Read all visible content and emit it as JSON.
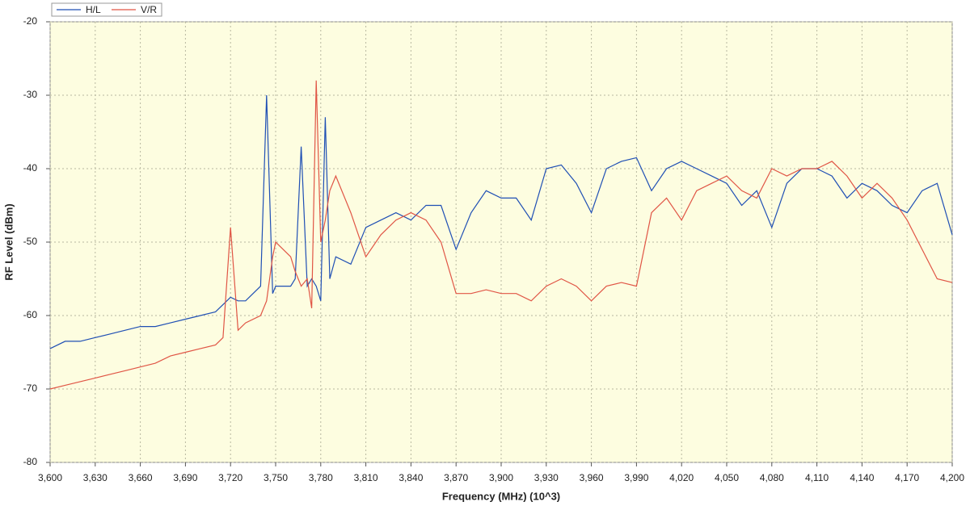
{
  "chart_data": {
    "type": "line",
    "x_label": "Frequency (MHz) (10^3)",
    "y_label": "RF Level (dBm)",
    "legend": "top-left",
    "grid": true,
    "xlim": [
      3600,
      4200
    ],
    "ylim": [
      -80,
      -20
    ],
    "yticks": [
      -20,
      -30,
      -40,
      -50,
      -60,
      -70,
      -80
    ],
    "xticks": [
      {
        "value": 3600,
        "label": "3,600"
      },
      {
        "value": 3630,
        "label": "3,630"
      },
      {
        "value": 3660,
        "label": "3,660"
      },
      {
        "value": 3690,
        "label": "3,690"
      },
      {
        "value": 3720,
        "label": "3,720"
      },
      {
        "value": 3750,
        "label": "3,750"
      },
      {
        "value": 3780,
        "label": "3,780"
      },
      {
        "value": 3810,
        "label": "3,810"
      },
      {
        "value": 3840,
        "label": "3,840"
      },
      {
        "value": 3870,
        "label": "3,870"
      },
      {
        "value": 3900,
        "label": "3,900"
      },
      {
        "value": 3930,
        "label": "3,930"
      },
      {
        "value": 3960,
        "label": "3,960"
      },
      {
        "value": 3990,
        "label": "3,990"
      },
      {
        "value": 4020,
        "label": "4,020"
      },
      {
        "value": 4050,
        "label": "4,050"
      },
      {
        "value": 4080,
        "label": "4,080"
      },
      {
        "value": 4110,
        "label": "4,110"
      },
      {
        "value": 4140,
        "label": "4,140"
      },
      {
        "value": 4170,
        "label": "4,170"
      },
      {
        "value": 4200,
        "label": "4,200"
      }
    ],
    "x": [
      3600,
      3610,
      3620,
      3630,
      3640,
      3650,
      3660,
      3670,
      3680,
      3690,
      3700,
      3710,
      3715,
      3720,
      3725,
      3730,
      3740,
      3744,
      3748,
      3750,
      3760,
      3763,
      3767,
      3771,
      3774,
      3777,
      3780,
      3783,
      3786,
      3790,
      3800,
      3810,
      3820,
      3830,
      3840,
      3850,
      3860,
      3870,
      3880,
      3890,
      3900,
      3910,
      3920,
      3930,
      3940,
      3950,
      3960,
      3970,
      3980,
      3990,
      4000,
      4010,
      4020,
      4030,
      4040,
      4050,
      4060,
      4070,
      4080,
      4090,
      4100,
      4110,
      4120,
      4130,
      4140,
      4150,
      4160,
      4170,
      4180,
      4190,
      4200
    ],
    "series": [
      {
        "name": "H/L",
        "color": "#1f4fb4",
        "values": [
          -64.5,
          -63.5,
          -63.5,
          -63,
          -62.5,
          -62,
          -61.5,
          -61.5,
          -61,
          -60.5,
          -60,
          -59.5,
          -58.5,
          -57.5,
          -58,
          -58,
          -56,
          -30,
          -57,
          -56,
          -56,
          -55,
          -37,
          -56,
          -55,
          -56,
          -58,
          -33,
          -55,
          -52,
          -53,
          -48,
          -47,
          -46,
          -47,
          -45,
          -45,
          -51,
          -46,
          -43,
          -44,
          -44,
          -47,
          -40,
          -39.5,
          -42,
          -46,
          -40,
          -39,
          -38.5,
          -43,
          -40,
          -39,
          -40,
          -41,
          -42,
          -45,
          -43,
          -48,
          -42,
          -40,
          -40,
          -41,
          -44,
          -42,
          -43,
          -45,
          -46,
          -43,
          -42,
          -49
        ]
      },
      {
        "name": "V/R",
        "color": "#e05545",
        "values": [
          -70,
          -69.5,
          -69,
          -68.5,
          -68,
          -67.5,
          -67,
          -66.5,
          -65.5,
          -65,
          -64.5,
          -64,
          -63,
          -48,
          -62,
          -61,
          -60,
          -58,
          -52,
          -50,
          -52,
          -54,
          -56,
          -55,
          -59,
          -28,
          -50,
          -47,
          -43,
          -41,
          -46,
          -52,
          -49,
          -47,
          -46,
          -47,
          -50,
          -57,
          -57,
          -56.5,
          -57,
          -57,
          -58,
          -56,
          -55,
          -56,
          -58,
          -56,
          -55.5,
          -56,
          -46,
          -44,
          -47,
          -43,
          -42,
          -41,
          -43,
          -44,
          -40,
          -41,
          -40,
          -40,
          -39,
          -41,
          -44,
          -42,
          -44,
          -47,
          -51,
          -55,
          -55.5
        ]
      }
    ]
  }
}
